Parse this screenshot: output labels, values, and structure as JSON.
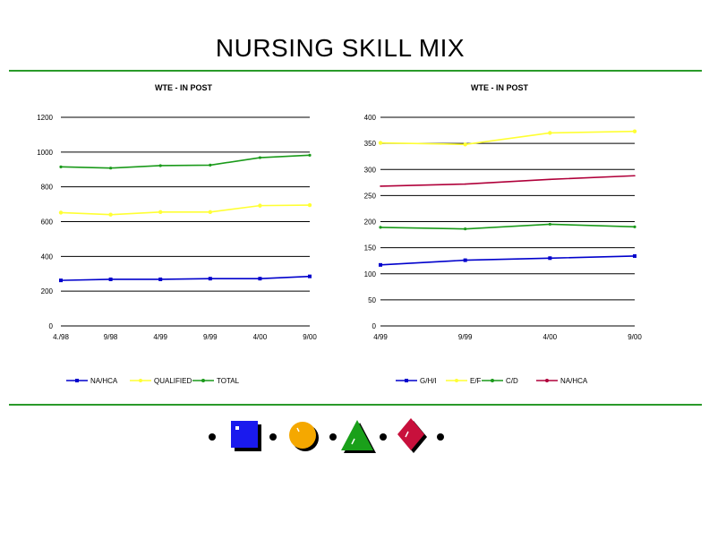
{
  "page": {
    "title": "NURSING SKILL MIX"
  },
  "chart_data": [
    {
      "type": "line",
      "title": "WTE - IN POST",
      "categories": [
        "4./98",
        "9/98",
        "4/99",
        "9/99",
        "4/00",
        "9/00"
      ],
      "ylim": [
        0,
        1200
      ],
      "yticks": [
        "0",
        "200",
        "400",
        "600",
        "800",
        "1000",
        "1200"
      ],
      "grid": true,
      "legend_position": "bottom",
      "series": [
        {
          "name": "NA/HCA",
          "color": "#0000cc",
          "marker": "square",
          "values": [
            262,
            268,
            268,
            272,
            272,
            285
          ]
        },
        {
          "name": "QUALIFIED",
          "color": "#ffff33",
          "marker": "circle",
          "values": [
            652,
            640,
            655,
            655,
            692,
            695
          ]
        },
        {
          "name": "TOTAL",
          "color": "#1a9a1a",
          "marker": "triangle",
          "values": [
            915,
            908,
            922,
            925,
            968,
            982
          ]
        }
      ]
    },
    {
      "type": "line",
      "title": "WTE - IN POST",
      "categories": [
        "4/99",
        "9/99",
        "4/00",
        "9/00"
      ],
      "ylim": [
        0,
        400
      ],
      "yticks": [
        "0",
        "50",
        "100",
        "150",
        "200",
        "250",
        "300",
        "350",
        "400"
      ],
      "grid": true,
      "legend_position": "bottom",
      "series": [
        {
          "name": "G/H/I",
          "color": "#0000cc",
          "marker": "square",
          "values": [
            117,
            126,
            130,
            134
          ]
        },
        {
          "name": "E/F",
          "color": "#ffff33",
          "marker": "circle",
          "values": [
            351,
            348,
            370,
            373
          ]
        },
        {
          "name": "C/D",
          "color": "#1a9a1a",
          "marker": "triangle",
          "values": [
            189,
            186,
            195,
            190
          ]
        },
        {
          "name": "NA/HCA",
          "color": "#b0003a",
          "marker": "none",
          "values": [
            268,
            272,
            281,
            288
          ]
        }
      ]
    }
  ],
  "decoration": {
    "shapes": [
      "square-icon",
      "circle-icon",
      "triangle-icon",
      "diamond-icon"
    ],
    "colors": [
      "#1a1aee",
      "#f5a800",
      "#1aa01a",
      "#c8103c"
    ]
  }
}
